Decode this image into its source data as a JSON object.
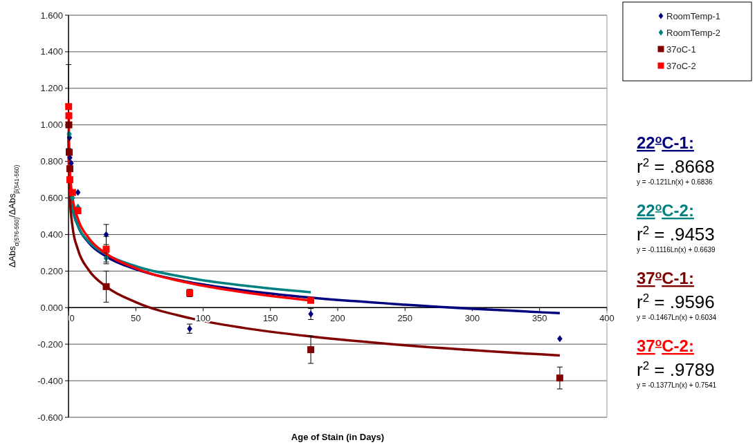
{
  "chart_data": {
    "type": "scatter",
    "xlabel": "Age of Stain (in Days)",
    "ylabel": "ΔAbs$_{α(576-560)}$/ΔAbs$_{β(541-560)}$",
    "xlim": [
      0,
      400
    ],
    "xticks": [
      0,
      50,
      100,
      150,
      200,
      250,
      300,
      350,
      400
    ],
    "ylim": [
      -0.6,
      1.6
    ],
    "yticks": [
      {
        "value": -0.6,
        "label": "-0.600"
      },
      {
        "value": -0.4,
        "label": "-0.400"
      },
      {
        "value": -0.2,
        "label": "-0.200"
      },
      {
        "value": 0,
        "label": "0.000"
      },
      {
        "value": 0.2,
        "label": "0.200"
      },
      {
        "value": 0.4,
        "label": "0.400"
      },
      {
        "value": 0.6,
        "label": "0.600"
      },
      {
        "value": 0.8,
        "label": "0.800"
      },
      {
        "value": 1.0,
        "label": "1.000"
      },
      {
        "value": 1.2,
        "label": "1.200"
      },
      {
        "value": 1.4,
        "label": "1.400"
      },
      {
        "value": 1.6,
        "label": "1.600"
      }
    ],
    "grid": "y",
    "legend": "top right",
    "series": [
      {
        "name": "RoomTemp-1",
        "color": "#00007f",
        "marker": "diamond",
        "x": [
          0.75,
          1,
          2,
          7,
          28,
          90,
          180,
          365
        ],
        "values": [
          0.93,
          0.82,
          0.79,
          0.63,
          0.4,
          -0.115,
          -0.035,
          -0.17
        ],
        "errors": [
          null,
          null,
          null,
          null,
          0.055,
          0.025,
          0.03,
          null
        ]
      },
      {
        "name": "RoomTemp-2",
        "color": "#008080",
        "marker": "diamond",
        "x": [
          0.5,
          3,
          7,
          28
        ],
        "values": [
          0.95,
          0.6,
          0.55,
          0.27
        ],
        "errors": [
          null,
          null,
          null,
          0.03
        ]
      },
      {
        "name": "37oC-1",
        "color": "#800000",
        "marker": "square",
        "x": [
          0.25,
          0.5,
          1,
          28,
          180,
          365
        ],
        "values": [
          1.0,
          0.85,
          0.76,
          0.115,
          -0.23,
          -0.385
        ],
        "errors": [
          null,
          null,
          null,
          0.085,
          0.075,
          0.06
        ]
      },
      {
        "name": "37oC-2",
        "color": "#ff0000",
        "marker": "square",
        "x": [
          0.1,
          0.25,
          1,
          3,
          7,
          28,
          90,
          180
        ],
        "values": [
          1.1,
          1.05,
          0.7,
          0.63,
          0.53,
          0.32,
          0.08,
          0.04
        ],
        "errors": [
          0.23,
          null,
          null,
          null,
          null,
          0.07,
          0.02,
          null
        ]
      },
      {
        "type": "line",
        "color": "#00007f",
        "x": [
          0.1,
          0.3,
          1,
          3,
          7,
          15,
          28,
          50,
          90,
          130,
          180,
          250,
          365
        ],
        "values": [
          0.962,
          0.829,
          0.684,
          0.551,
          0.448,
          0.356,
          0.28,
          0.21,
          0.139,
          0.095,
          0.055,
          0.016,
          -0.03
        ]
      },
      {
        "type": "line",
        "color": "#008080",
        "x": [
          0.1,
          0.3,
          1,
          3,
          7,
          15,
          28,
          50,
          90,
          130,
          180
        ],
        "values": [
          0.921,
          0.798,
          0.664,
          0.541,
          0.447,
          0.362,
          0.292,
          0.227,
          0.162,
          0.121,
          0.084
        ]
      },
      {
        "type": "line",
        "color": "#800000",
        "x": [
          0.1,
          0.3,
          1,
          3,
          7,
          15,
          28,
          50,
          90,
          130,
          180,
          250,
          365
        ],
        "values": [
          0.941,
          0.78,
          0.603,
          0.442,
          0.318,
          0.206,
          0.115,
          0.03,
          -0.057,
          -0.111,
          -0.158,
          -0.206,
          -0.262
        ]
      },
      {
        "type": "line",
        "color": "#ff0000",
        "x": [
          0.1,
          0.3,
          1,
          3,
          7,
          15,
          28,
          50,
          90,
          130,
          180
        ],
        "values": [
          1.071,
          0.92,
          0.754,
          0.603,
          0.486,
          0.381,
          0.295,
          0.215,
          0.134,
          0.084,
          0.039
        ]
      }
    ],
    "annotations": [
      "22$^{o}$C-1:",
      "r$^{2}$ = .8668",
      "y = -0.121Ln(x) + 0.6836",
      "22$^{o}$C-2:",
      "r$^{2}$ = .9453",
      "y = -0.1116Ln(x) + 0.6639",
      "37$^{o}$C-1:",
      "r$^{2}$ = .9596",
      "y = -0.1467Ln(x) + 0.6034",
      "37$^{o}$C-2:",
      "r$^{2}$ = .9789",
      "y = -0.1377Ln(x) + 0.7541"
    ]
  }
}
